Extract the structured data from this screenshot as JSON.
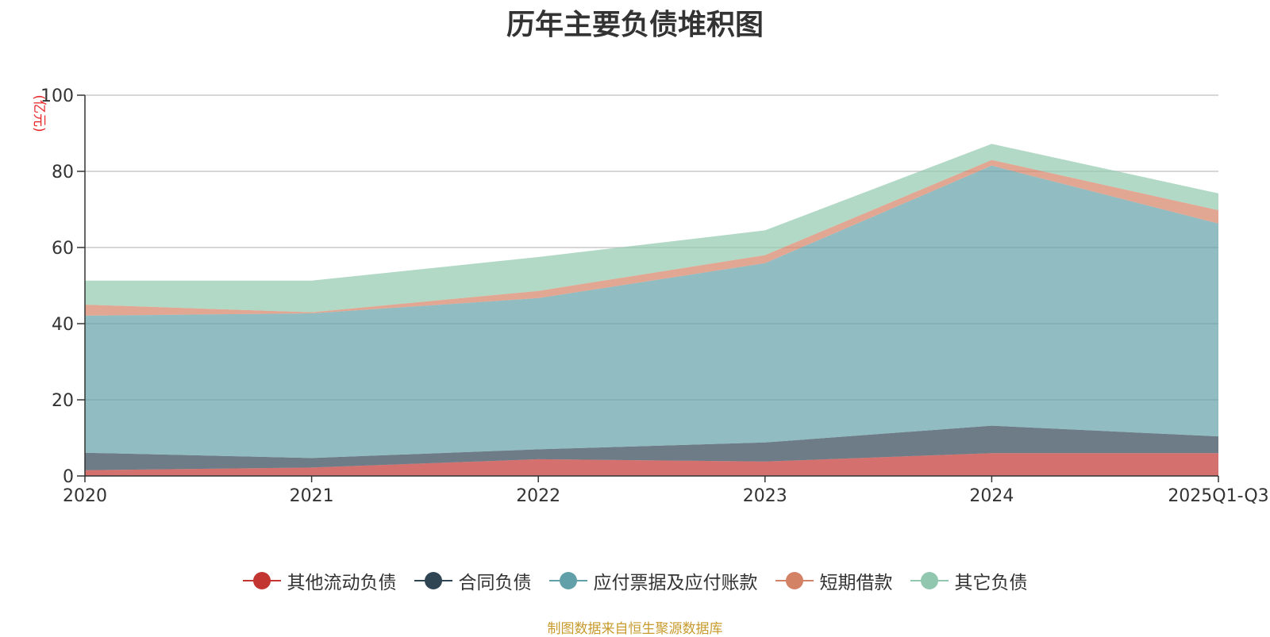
{
  "chart_data": {
    "type": "area",
    "stacked": true,
    "title": "历年主要负债堆积图",
    "ylabel": "(亿元)",
    "xlabel": "",
    "categories": [
      "2020",
      "2021",
      "2022",
      "2023",
      "2024",
      "2025Q1-Q3"
    ],
    "ylim": [
      0,
      100
    ],
    "yticks": [
      0,
      20,
      40,
      60,
      80,
      100
    ],
    "grid": true,
    "legend_position": "bottom",
    "series": [
      {
        "name": "其他流动负债",
        "color": "#c23531",
        "values": [
          1.5,
          2.2,
          4.4,
          3.8,
          6.0,
          6.0
        ]
      },
      {
        "name": "合同负债",
        "color": "#2f4554",
        "values": [
          4.6,
          2.5,
          2.6,
          5.0,
          7.2,
          4.4
        ]
      },
      {
        "name": "应付票据及应付账款",
        "color": "#61a0a8",
        "values": [
          36.0,
          38.0,
          39.7,
          47.1,
          68.3,
          55.9
        ]
      },
      {
        "name": "短期借款",
        "color": "#d48265",
        "values": [
          2.9,
          0.3,
          1.9,
          2.1,
          1.5,
          3.5
        ]
      },
      {
        "name": "其它负债",
        "color": "#91c7ae",
        "values": [
          6.3,
          8.3,
          8.9,
          6.5,
          4.2,
          4.4
        ]
      }
    ]
  },
  "footer": {
    "source": "制图数据来自恒生聚源数据库"
  }
}
